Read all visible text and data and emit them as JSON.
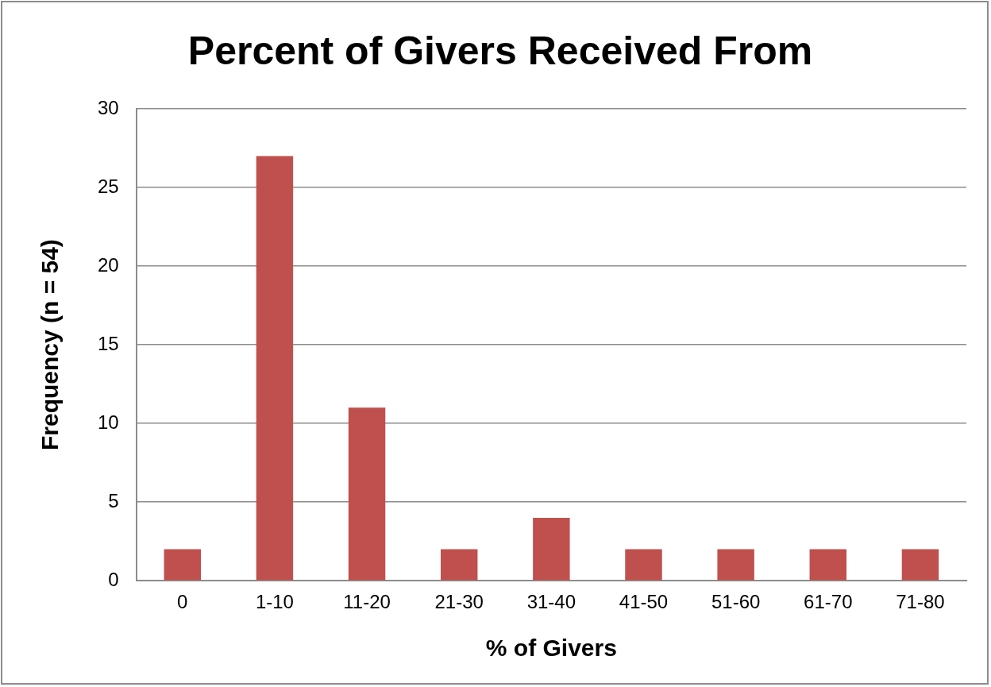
{
  "chart_data": {
    "type": "bar",
    "title": "Percent of Givers Received From",
    "xlabel": "% of Givers",
    "ylabel": "Frequency (n = 54)",
    "categories": [
      "0",
      "1-10",
      "11-20",
      "21-30",
      "31-40",
      "41-50",
      "51-60",
      "61-70",
      "71-80"
    ],
    "values": [
      2,
      27,
      11,
      2,
      4,
      2,
      2,
      2,
      2
    ],
    "color": "#c0504d",
    "ylim": [
      0,
      30
    ],
    "yticks": [
      0,
      5,
      10,
      15,
      20,
      25,
      30
    ],
    "grid": "y",
    "legend": false
  }
}
